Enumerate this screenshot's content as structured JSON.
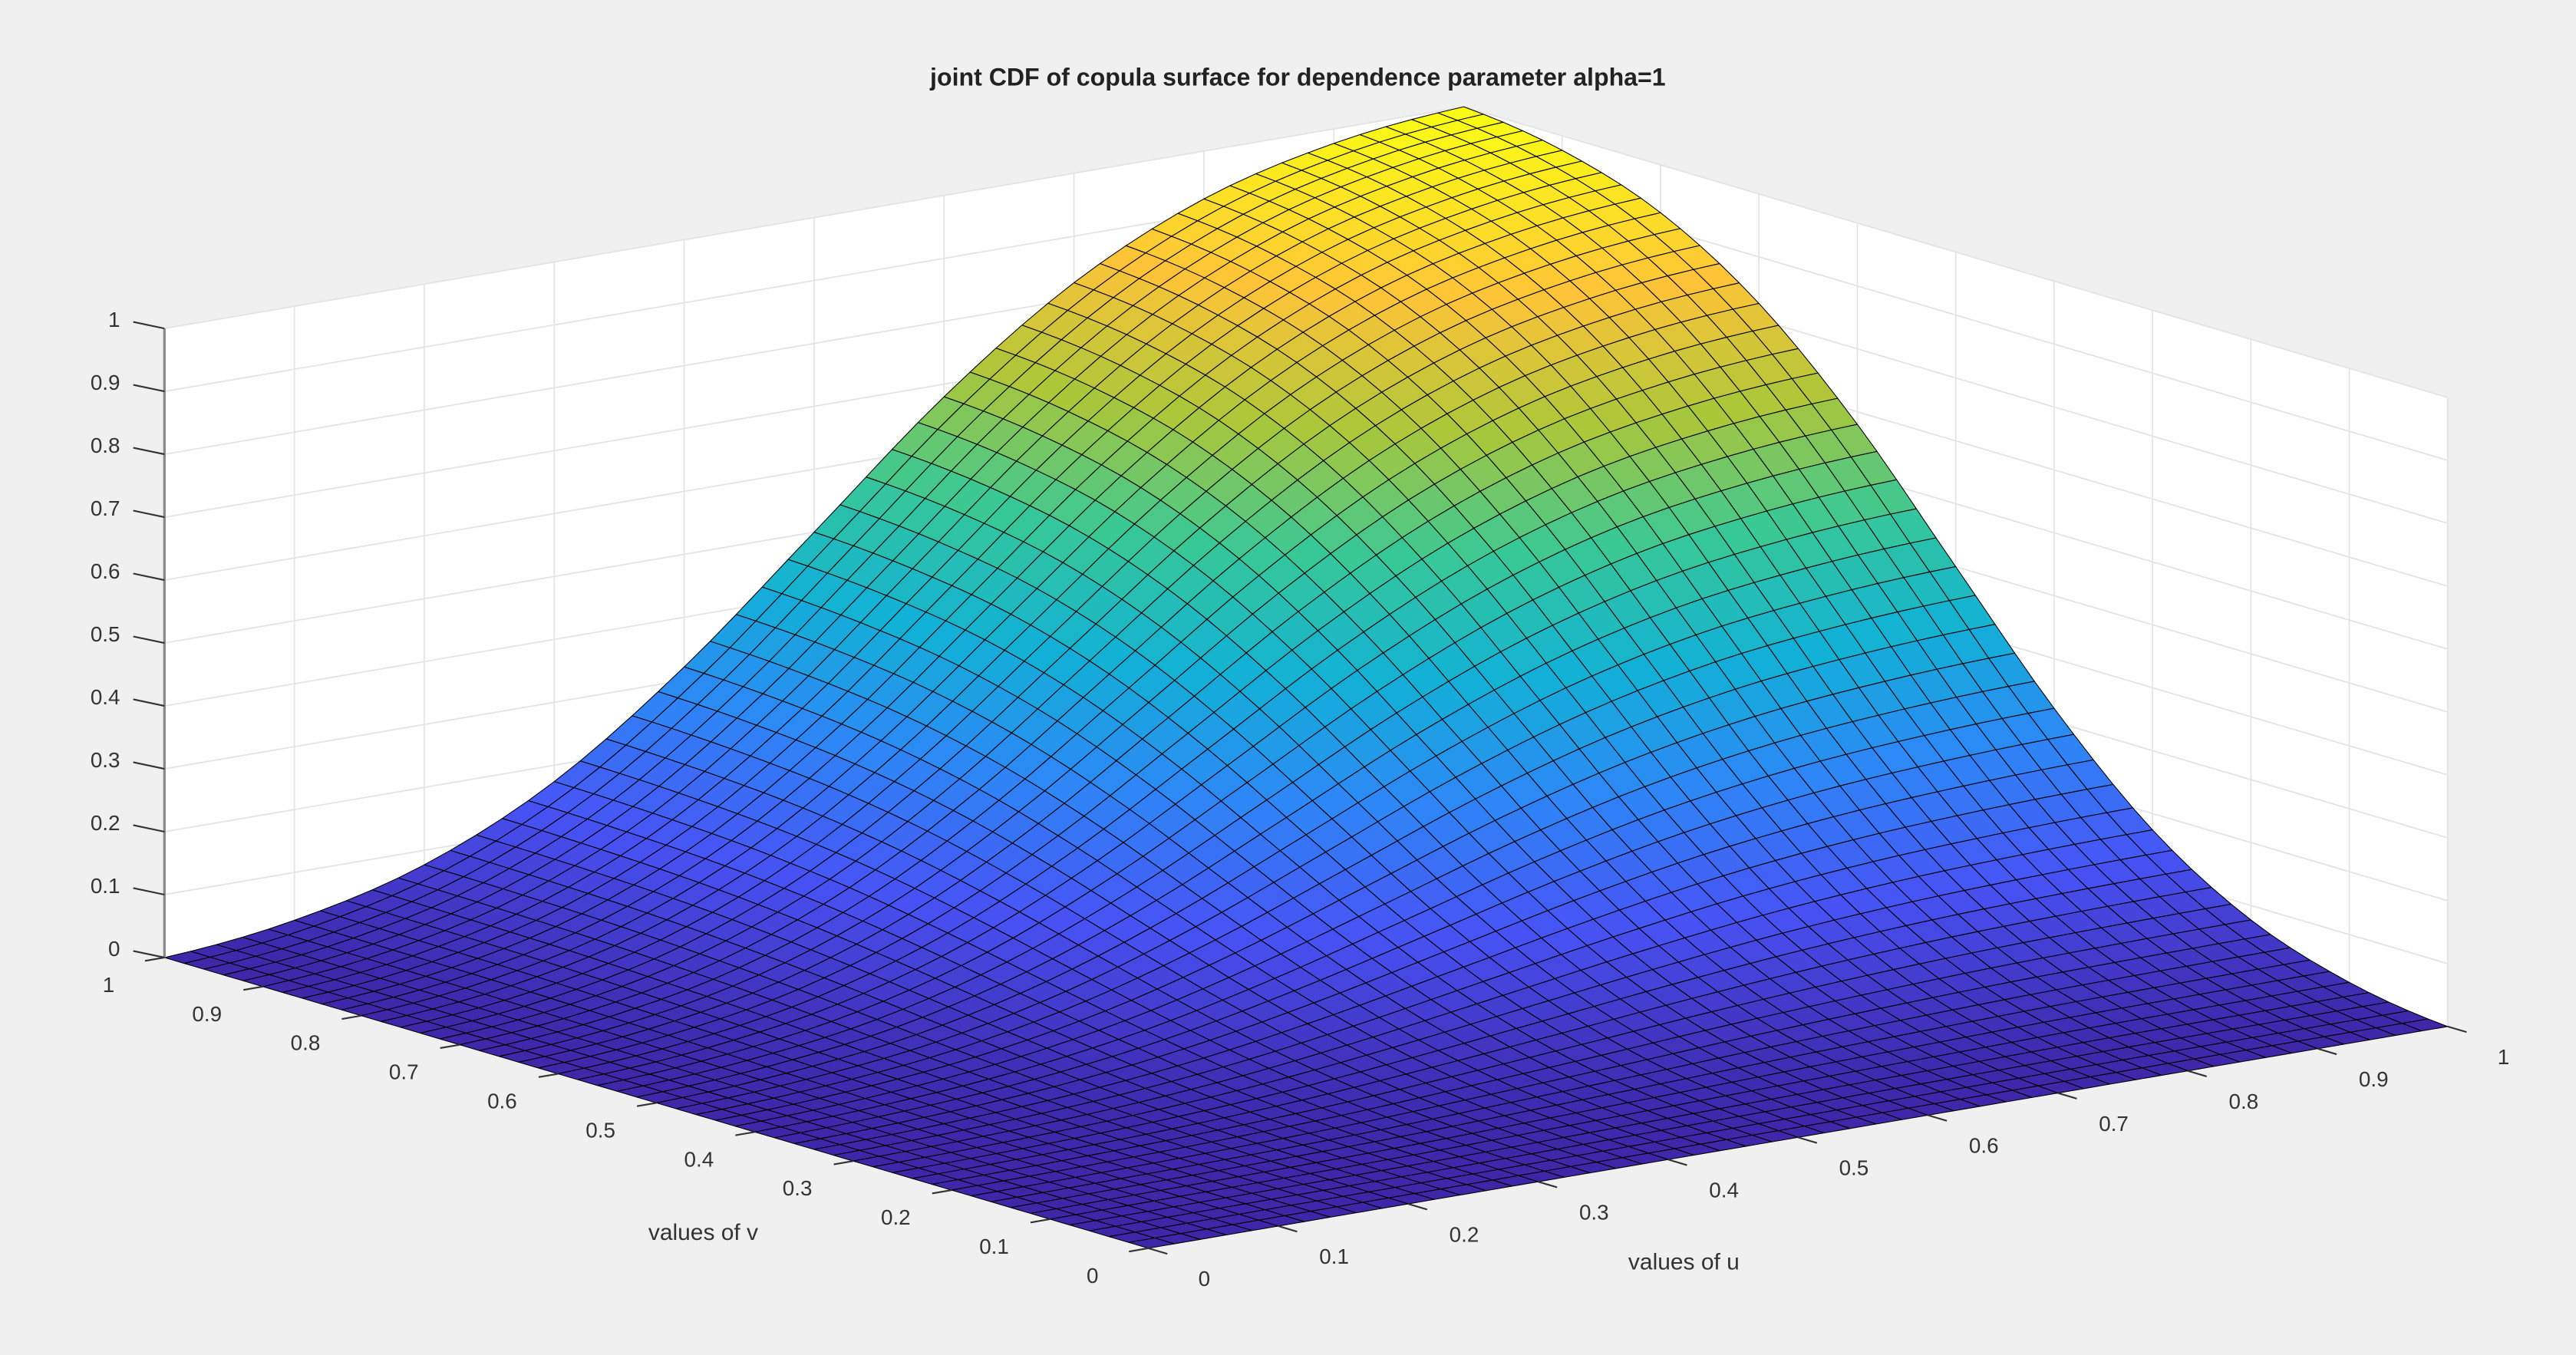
{
  "chart_data": {
    "type": "surface",
    "title": "joint CDF of copula surface for dependence parameter alpha=1",
    "xlabel": "values of u",
    "ylabel": "values of v",
    "zlabel": "",
    "xlim": [
      0,
      1
    ],
    "ylim": [
      0,
      1
    ],
    "zlim": [
      0,
      1
    ],
    "x_ticks": [
      "0",
      "0.1",
      "0.2",
      "0.3",
      "0.4",
      "0.5",
      "0.6",
      "0.7",
      "0.8",
      "0.9",
      "1"
    ],
    "y_ticks": [
      "0",
      "0.1",
      "0.2",
      "0.3",
      "0.4",
      "0.5",
      "0.6",
      "0.7",
      "0.8",
      "0.9",
      "1"
    ],
    "z_ticks": [
      "0",
      "0.1",
      "0.2",
      "0.3",
      "0.4",
      "0.5",
      "0.6",
      "0.7",
      "0.8",
      "0.9",
      "1"
    ],
    "grid": true,
    "colormap": "parula",
    "edge_color": "#000000",
    "grid_x": [
      0,
      0.1,
      0.2,
      0.3,
      0.4,
      0.5,
      0.6,
      0.7,
      0.8,
      0.9,
      1
    ],
    "grid_y": [
      0,
      0.1,
      0.2,
      0.3,
      0.4,
      0.5,
      0.6,
      0.7,
      0.8,
      0.9,
      1
    ],
    "z": [
      [
        0,
        0,
        0,
        0,
        0,
        0,
        0,
        0,
        0,
        0,
        0
      ],
      [
        0,
        0.001,
        0.002,
        0.004,
        0.008,
        0.012,
        0.016,
        0.019,
        0.022,
        0.023,
        0.024
      ],
      [
        0,
        0.002,
        0.006,
        0.013,
        0.025,
        0.038,
        0.052,
        0.063,
        0.071,
        0.075,
        0.077
      ],
      [
        0,
        0.004,
        0.013,
        0.03,
        0.056,
        0.087,
        0.118,
        0.144,
        0.161,
        0.17,
        0.174
      ],
      [
        0,
        0.008,
        0.025,
        0.056,
        0.103,
        0.16,
        0.218,
        0.265,
        0.296,
        0.313,
        0.321
      ],
      [
        0,
        0.012,
        0.038,
        0.087,
        0.16,
        0.25,
        0.34,
        0.413,
        0.462,
        0.488,
        0.5
      ],
      [
        0,
        0.016,
        0.052,
        0.118,
        0.218,
        0.34,
        0.462,
        0.561,
        0.628,
        0.664,
        0.68
      ],
      [
        0,
        0.019,
        0.063,
        0.144,
        0.265,
        0.413,
        0.561,
        0.682,
        0.763,
        0.807,
        0.826
      ],
      [
        0,
        0.022,
        0.071,
        0.161,
        0.296,
        0.462,
        0.628,
        0.763,
        0.853,
        0.902,
        0.924
      ],
      [
        0,
        0.023,
        0.075,
        0.17,
        0.313,
        0.488,
        0.664,
        0.807,
        0.902,
        0.954,
        0.977
      ],
      [
        0,
        0.024,
        0.077,
        0.174,
        0.321,
        0.5,
        0.68,
        0.826,
        0.924,
        0.977,
        1.0
      ]
    ]
  }
}
